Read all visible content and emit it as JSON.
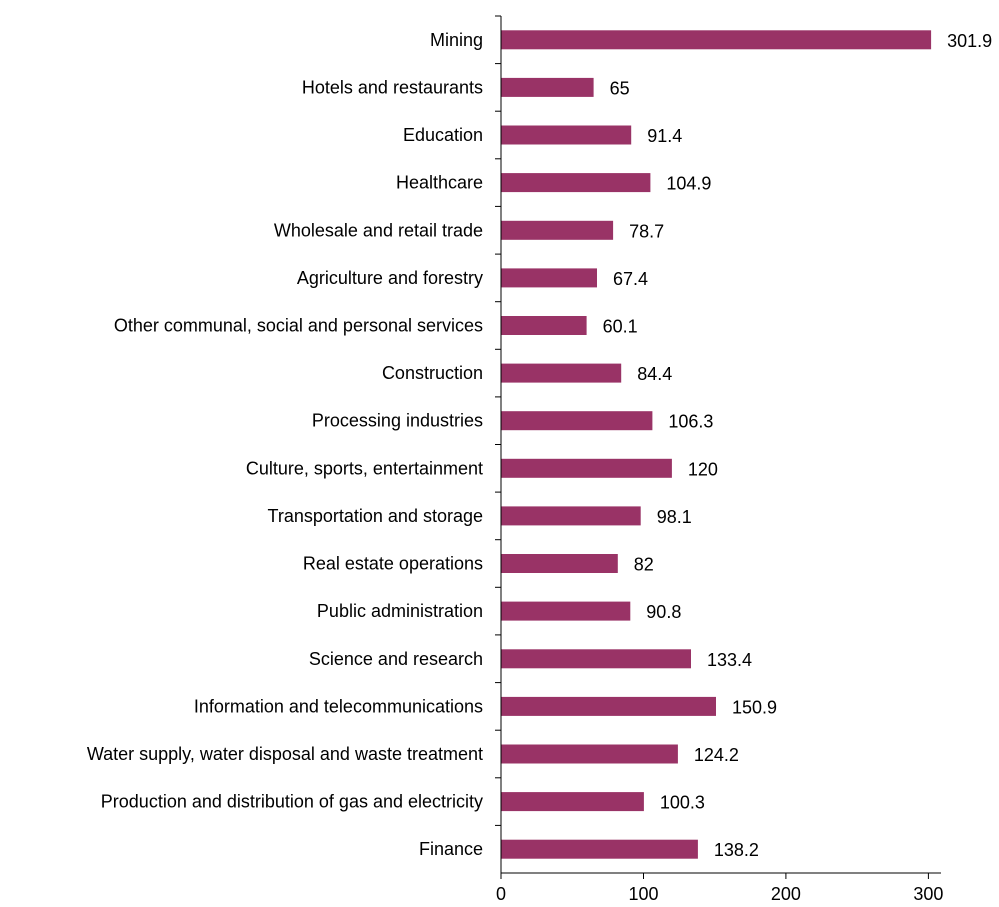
{
  "chart_data": {
    "type": "bar",
    "orientation": "horizontal",
    "title": "",
    "xlabel": "",
    "ylabel": "",
    "categories": [
      "Mining",
      "Hotels and restaurants",
      "Education",
      "Healthcare",
      "Wholesale and retail trade",
      "Agriculture and forestry",
      "Other communal, social and personal services",
      "Construction",
      "Processing industries",
      "Culture, sports, entertainment",
      "Transportation and storage",
      "Real estate operations",
      "Public administration",
      "Science and research",
      "Information and telecommunications",
      "Water supply, water disposal and waste treatment",
      "Production and distribution of gas and electricity",
      "Finance"
    ],
    "values": [
      301.9,
      65,
      91.4,
      104.9,
      78.7,
      67.4,
      60.1,
      84.4,
      106.3,
      120,
      98.1,
      82,
      90.8,
      133.4,
      150.9,
      124.2,
      100.3,
      138.2
    ],
    "value_labels": [
      "301.9",
      "65",
      "91.4",
      "104.9",
      "78.7",
      "67.4",
      "60.1",
      "84.4",
      "106.3",
      "120",
      "98.1",
      "82",
      "90.8",
      "133.4",
      "150.9",
      "124.2",
      "100.3",
      "138.2"
    ],
    "xlim": [
      0,
      310
    ],
    "xticks": [
      0,
      100,
      200,
      300
    ],
    "xtick_labels": [
      "0",
      "100",
      "200",
      "300"
    ],
    "bar_color": "#993366",
    "grid": false,
    "legend": "none"
  }
}
